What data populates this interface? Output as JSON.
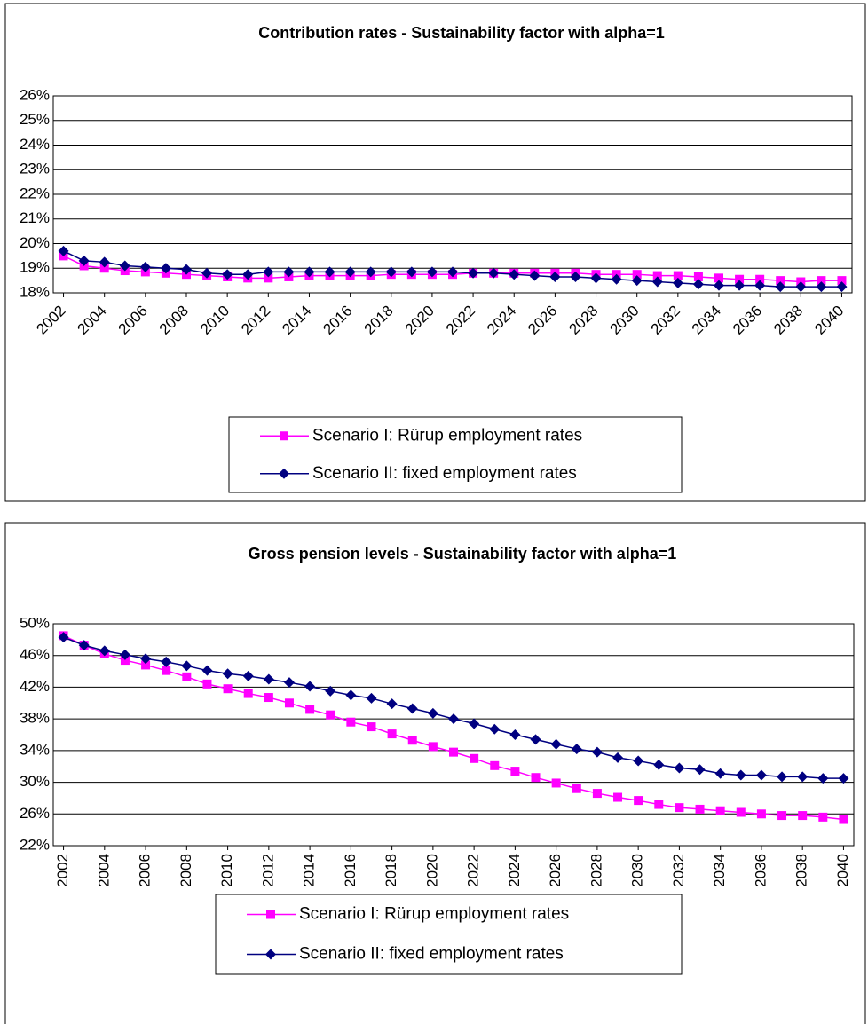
{
  "chart_data": [
    {
      "type": "line",
      "title": "Contribution rates - Sustainability factor with alpha=1",
      "x": [
        2002,
        2003,
        2004,
        2005,
        2006,
        2007,
        2008,
        2009,
        2010,
        2011,
        2012,
        2013,
        2014,
        2015,
        2016,
        2017,
        2018,
        2019,
        2020,
        2021,
        2022,
        2023,
        2024,
        2025,
        2026,
        2027,
        2028,
        2029,
        2030,
        2031,
        2032,
        2033,
        2034,
        2035,
        2036,
        2037,
        2038,
        2039,
        2040
      ],
      "xlim": [
        2001.5,
        2040.5
      ],
      "xticks": [
        2002,
        2004,
        2006,
        2008,
        2010,
        2012,
        2014,
        2016,
        2018,
        2020,
        2022,
        2024,
        2026,
        2028,
        2030,
        2032,
        2034,
        2036,
        2038,
        2040
      ],
      "ylim": [
        18,
        26
      ],
      "yticks": [
        {
          "value": 18,
          "label": "18%"
        },
        {
          "value": 19,
          "label": "19%"
        },
        {
          "value": 20,
          "label": "20%"
        },
        {
          "value": 21,
          "label": "21%"
        },
        {
          "value": 22,
          "label": "22%"
        },
        {
          "value": 23,
          "label": "23%"
        },
        {
          "value": 24,
          "label": "24%"
        },
        {
          "value": 25,
          "label": "25%"
        },
        {
          "value": 26,
          "label": "26%"
        }
      ],
      "grid": true,
      "series": [
        {
          "name": "Scenario I: Rürup employment rates",
          "color": "#ff00ff",
          "marker": "square",
          "values": [
            19.5,
            19.1,
            19.0,
            18.9,
            18.85,
            18.8,
            18.75,
            18.7,
            18.65,
            18.6,
            18.6,
            18.65,
            18.7,
            18.7,
            18.7,
            18.7,
            18.75,
            18.75,
            18.75,
            18.75,
            18.8,
            18.8,
            18.8,
            18.8,
            18.8,
            18.8,
            18.75,
            18.75,
            18.75,
            18.7,
            18.7,
            18.65,
            18.6,
            18.55,
            18.55,
            18.5,
            18.45,
            18.5,
            18.5
          ]
        },
        {
          "name": "Scenario II: fixed employment rates",
          "color": "#000080",
          "marker": "diamond",
          "values": [
            19.7,
            19.3,
            19.25,
            19.1,
            19.05,
            19.0,
            18.95,
            18.8,
            18.75,
            18.75,
            18.85,
            18.85,
            18.85,
            18.85,
            18.85,
            18.85,
            18.85,
            18.85,
            18.85,
            18.85,
            18.8,
            18.8,
            18.75,
            18.7,
            18.65,
            18.65,
            18.6,
            18.55,
            18.5,
            18.45,
            18.4,
            18.35,
            18.3,
            18.3,
            18.3,
            18.25,
            18.25,
            18.25,
            18.25
          ]
        }
      ]
    },
    {
      "type": "line",
      "title": "Gross pension levels - Sustainability factor with alpha=1",
      "x": [
        2002,
        2003,
        2004,
        2005,
        2006,
        2007,
        2008,
        2009,
        2010,
        2011,
        2012,
        2013,
        2014,
        2015,
        2016,
        2017,
        2018,
        2019,
        2020,
        2021,
        2022,
        2023,
        2024,
        2025,
        2026,
        2027,
        2028,
        2029,
        2030,
        2031,
        2032,
        2033,
        2034,
        2035,
        2036,
        2037,
        2038,
        2039,
        2040
      ],
      "xlim": [
        2001.5,
        2040.5
      ],
      "xticks": [
        2002,
        2004,
        2006,
        2008,
        2010,
        2012,
        2014,
        2016,
        2018,
        2020,
        2022,
        2024,
        2026,
        2028,
        2030,
        2032,
        2034,
        2036,
        2038,
        2040
      ],
      "ylim": [
        22,
        50
      ],
      "yticks": [
        {
          "value": 22,
          "label": "22%"
        },
        {
          "value": 26,
          "label": "26%"
        },
        {
          "value": 30,
          "label": "30%"
        },
        {
          "value": 34,
          "label": "34%"
        },
        {
          "value": 38,
          "label": "38%"
        },
        {
          "value": 42,
          "label": "42%"
        },
        {
          "value": 46,
          "label": "46%"
        },
        {
          "value": 50,
          "label": "50%"
        }
      ],
      "grid": true,
      "series": [
        {
          "name": "Scenario I: Rürup employment rates",
          "color": "#ff00ff",
          "marker": "square",
          "values": [
            48.5,
            47.3,
            46.2,
            45.4,
            44.8,
            44.1,
            43.3,
            42.4,
            41.8,
            41.2,
            40.7,
            40.0,
            39.2,
            38.5,
            37.6,
            37.0,
            36.1,
            35.3,
            34.5,
            33.8,
            33.0,
            32.1,
            31.4,
            30.6,
            29.9,
            29.2,
            28.6,
            28.1,
            27.7,
            27.2,
            26.8,
            26.6,
            26.4,
            26.2,
            26.0,
            25.8,
            25.8,
            25.6,
            25.3
          ]
        },
        {
          "name": "Scenario II: fixed employment rates",
          "color": "#000080",
          "marker": "diamond",
          "values": [
            48.3,
            47.3,
            46.6,
            46.1,
            45.6,
            45.2,
            44.7,
            44.1,
            43.7,
            43.4,
            43.0,
            42.6,
            42.1,
            41.5,
            41.0,
            40.6,
            39.9,
            39.3,
            38.7,
            38.0,
            37.4,
            36.7,
            36.0,
            35.4,
            34.8,
            34.2,
            33.8,
            33.1,
            32.7,
            32.2,
            31.8,
            31.6,
            31.1,
            30.9,
            30.9,
            30.7,
            30.7,
            30.5,
            30.5
          ]
        }
      ]
    }
  ]
}
